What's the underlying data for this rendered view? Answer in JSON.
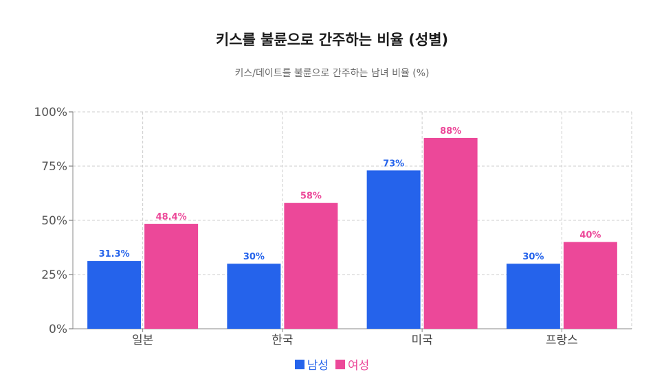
{
  "chart_data": {
    "type": "bar",
    "title": "키스를 불륜으로 간주하는 비율 (성별)",
    "subtitle": "키스/데이트를 불륜으로 간주하는 남녀 비율 (%)",
    "categories": [
      "일본",
      "한국",
      "미국",
      "프랑스"
    ],
    "series": [
      {
        "name": "남성",
        "values": [
          31.3,
          30,
          73,
          30
        ],
        "labels": [
          "31.3%",
          "30%",
          "73%",
          "30%"
        ],
        "color": "#2563eb"
      },
      {
        "name": "여성",
        "values": [
          48.4,
          58,
          88,
          40
        ],
        "labels": [
          "48.4%",
          "58%",
          "88%",
          "40%"
        ],
        "color": "#ec4899"
      }
    ],
    "ylim": [
      0,
      100
    ],
    "yticks": [
      "0%",
      "25%",
      "50%",
      "75%",
      "100%"
    ],
    "ytick_values": [
      0,
      25,
      50,
      75,
      100
    ],
    "grid": true,
    "legend_position": "bottom"
  }
}
